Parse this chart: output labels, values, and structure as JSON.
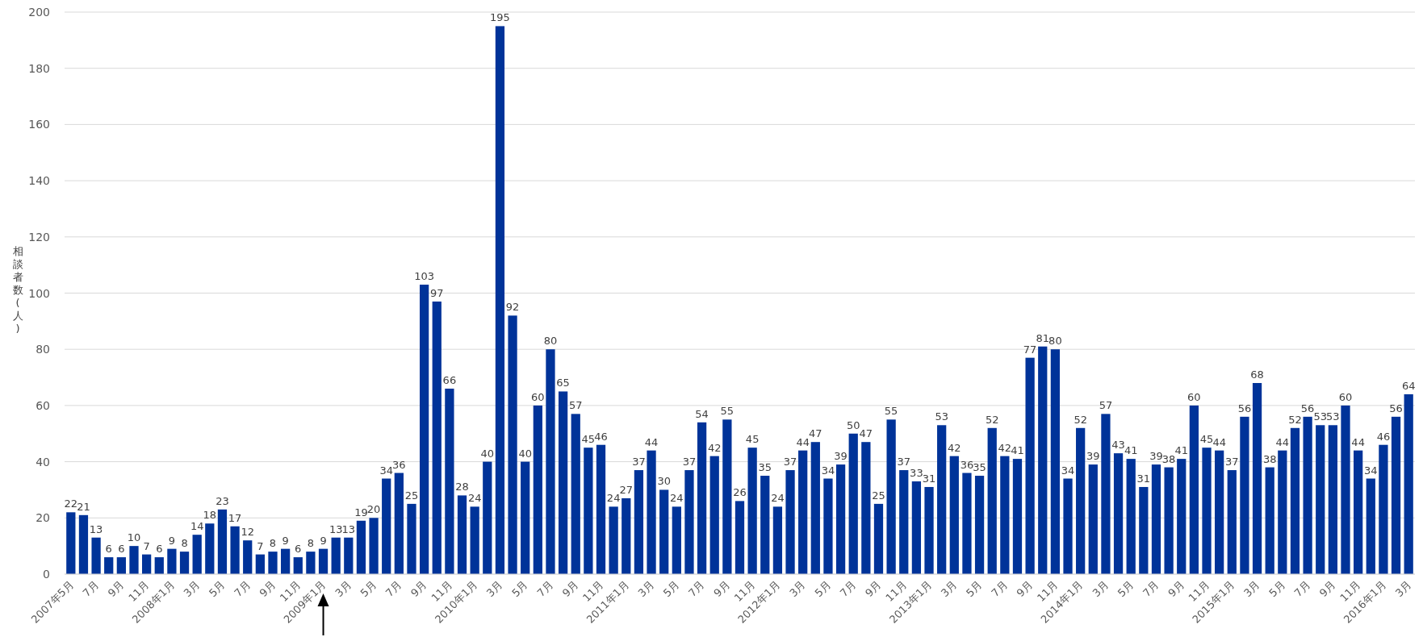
{
  "chart_data": {
    "type": "bar",
    "ylabel": "相談者数(人)",
    "categories": [
      "2007年5月",
      null,
      "7月",
      null,
      "9月",
      null,
      "11月",
      null,
      "2008年1月",
      null,
      "3月",
      null,
      "5月",
      null,
      "7月",
      null,
      "9月",
      null,
      "11月",
      null,
      "2009年1月",
      null,
      "3月",
      null,
      "5月",
      null,
      "7月",
      null,
      "9月",
      null,
      "11月",
      null,
      "2010年1月",
      null,
      "3月",
      null,
      "5月",
      null,
      "7月",
      null,
      "9月",
      null,
      "11月",
      null,
      "2011年1月",
      null,
      "3月",
      null,
      "5月",
      null,
      "7月",
      null,
      "9月",
      null,
      "11月",
      null,
      "2012年1月",
      null,
      "3月",
      null,
      "5月",
      null,
      "7月",
      null,
      "9月",
      null,
      "11月",
      null,
      "2013年1月",
      null,
      "3月",
      null,
      "5月",
      null,
      "7月",
      null,
      "9月",
      null,
      "11月",
      null,
      "2014年1月",
      null,
      "3月",
      null,
      "5月",
      null,
      "7月",
      null,
      "9月",
      null,
      "11月",
      null,
      "2015年1月",
      null,
      "3月",
      null,
      "5月",
      null,
      "7月",
      null,
      "9月",
      null,
      "11月",
      null,
      "2016年1月",
      null,
      "3月"
    ],
    "values": [
      22,
      21,
      13,
      6,
      6,
      10,
      7,
      6,
      9,
      8,
      14,
      18,
      23,
      17,
      12,
      7,
      8,
      9,
      6,
      8,
      9,
      13,
      13,
      19,
      20,
      34,
      36,
      25,
      103,
      97,
      66,
      28,
      24,
      40,
      195,
      92,
      40,
      60,
      80,
      65,
      57,
      45,
      46,
      24,
      27,
      37,
      44,
      30,
      24,
      37,
      54,
      42,
      55,
      26,
      45,
      35,
      24,
      37,
      44,
      47,
      34,
      39,
      50,
      47,
      25,
      55,
      37,
      33,
      31,
      53,
      42,
      36,
      35,
      52,
      42,
      41,
      77,
      81,
      80,
      34,
      52,
      39,
      57,
      43,
      41,
      31,
      39,
      38,
      41,
      60,
      45,
      44,
      37,
      56,
      68,
      38,
      44,
      52,
      56,
      53,
      53,
      60,
      44,
      34,
      46,
      56,
      64
    ],
    "color": "#003399",
    "ylim": [
      0,
      200
    ],
    "yticks": [
      0,
      20,
      40,
      60,
      80,
      100,
      120,
      140,
      160,
      180,
      200
    ],
    "grid": "y",
    "data_labels": true
  }
}
